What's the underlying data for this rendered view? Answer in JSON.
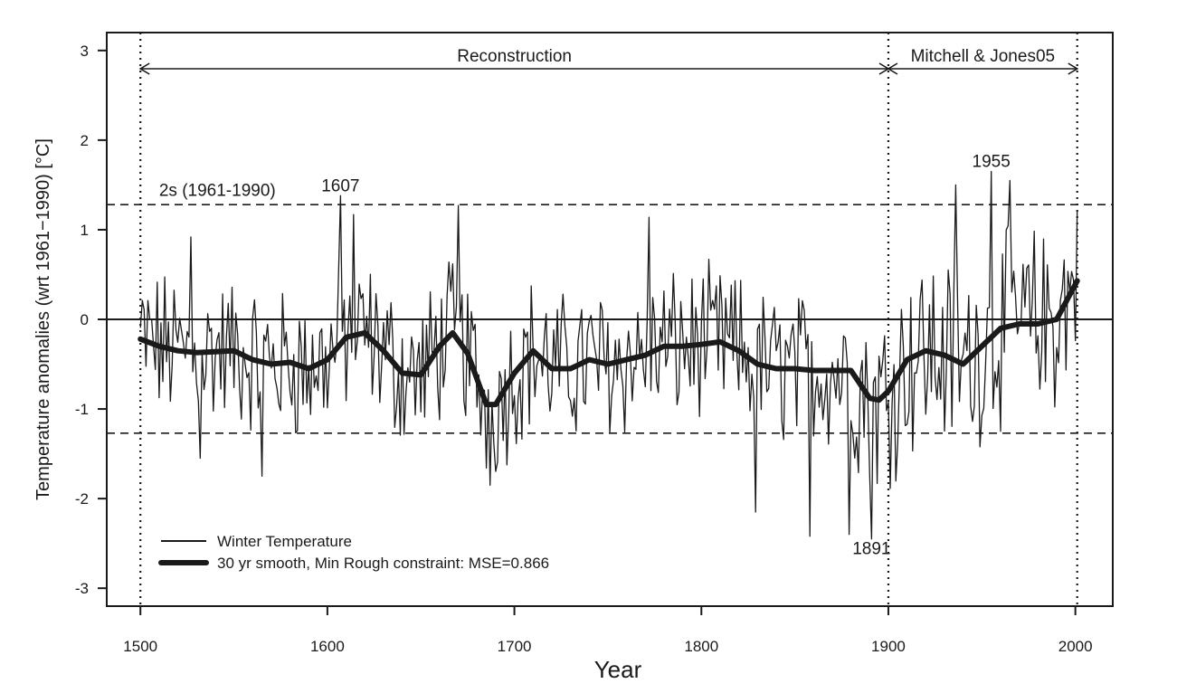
{
  "chart_data": {
    "type": "line",
    "xlabel": "Year",
    "ylabel": "Temperature anomalies (wrt 1961−1990) [°C]",
    "xlim": [
      1482,
      2020
    ],
    "ylim": [
      -3.2,
      3.2
    ],
    "xticks": [
      1500,
      1600,
      1700,
      1800,
      1900,
      2000
    ],
    "yticks": [
      3,
      2,
      1,
      0,
      -1,
      -2,
      -3
    ],
    "zero_line": 0,
    "threshold_lines": [
      1.28,
      -1.27
    ],
    "period_dividers": [
      1500,
      1900,
      2001
    ],
    "periods": [
      {
        "label": "Reconstruction",
        "start": 1500,
        "end": 1900
      },
      {
        "label": "Mitchell & Jones05",
        "start": 1900,
        "end": 2001
      }
    ],
    "annotations": [
      {
        "text": "2s  (1961-1990)",
        "x": 1510,
        "y": 1.38
      },
      {
        "text": "1607",
        "x": 1607,
        "y": 1.43
      },
      {
        "text": "1955",
        "x": 1955,
        "y": 1.7
      },
      {
        "text": "1891",
        "x": 1891,
        "y": -2.62
      }
    ],
    "legend": {
      "position": "bottom-left",
      "entries": [
        "Winter Temperature",
        "30 yr smooth, Min Rough constraint: MSE=0.866"
      ]
    },
    "series": [
      {
        "name": "Winter Temperature",
        "style": "thin",
        "generated": true,
        "peaks": [
          {
            "x": 1527,
            "y": 0.92
          },
          {
            "x": 1532,
            "y": -1.55
          },
          {
            "x": 1565,
            "y": -1.75
          },
          {
            "x": 1607,
            "y": 1.38
          },
          {
            "x": 1614,
            "y": 1.17
          },
          {
            "x": 1670,
            "y": 1.27
          },
          {
            "x": 1687,
            "y": -1.85
          },
          {
            "x": 1772,
            "y": 1.14
          },
          {
            "x": 1829,
            "y": -2.15
          },
          {
            "x": 1858,
            "y": -2.42
          },
          {
            "x": 1879,
            "y": -2.4
          },
          {
            "x": 1891,
            "y": -2.45
          },
          {
            "x": 1936,
            "y": 1.5
          },
          {
            "x": 1955,
            "y": 1.65
          },
          {
            "x": 1965,
            "y": 1.55
          },
          {
            "x": 2001,
            "y": 1.22
          }
        ]
      },
      {
        "name": "30 yr smooth, Min Rough constraint: MSE=0.866",
        "style": "thick",
        "x": [
          1500,
          1510,
          1520,
          1530,
          1540,
          1550,
          1560,
          1570,
          1580,
          1590,
          1600,
          1610,
          1620,
          1630,
          1640,
          1650,
          1660,
          1667,
          1675,
          1685,
          1690,
          1700,
          1710,
          1720,
          1730,
          1740,
          1750,
          1760,
          1770,
          1780,
          1790,
          1800,
          1810,
          1820,
          1830,
          1840,
          1850,
          1860,
          1870,
          1880,
          1890,
          1895,
          1900,
          1910,
          1920,
          1930,
          1940,
          1950,
          1960,
          1970,
          1980,
          1990,
          2001
        ],
        "y": [
          -0.22,
          -0.3,
          -0.35,
          -0.37,
          -0.36,
          -0.35,
          -0.45,
          -0.5,
          -0.48,
          -0.55,
          -0.45,
          -0.2,
          -0.15,
          -0.35,
          -0.6,
          -0.62,
          -0.3,
          -0.15,
          -0.38,
          -0.95,
          -0.95,
          -0.6,
          -0.35,
          -0.55,
          -0.55,
          -0.45,
          -0.5,
          -0.45,
          -0.4,
          -0.3,
          -0.3,
          -0.28,
          -0.25,
          -0.35,
          -0.5,
          -0.55,
          -0.55,
          -0.57,
          -0.57,
          -0.57,
          -0.88,
          -0.9,
          -0.8,
          -0.45,
          -0.35,
          -0.4,
          -0.5,
          -0.3,
          -0.1,
          -0.05,
          -0.05,
          0.0,
          0.43
        ]
      }
    ]
  }
}
